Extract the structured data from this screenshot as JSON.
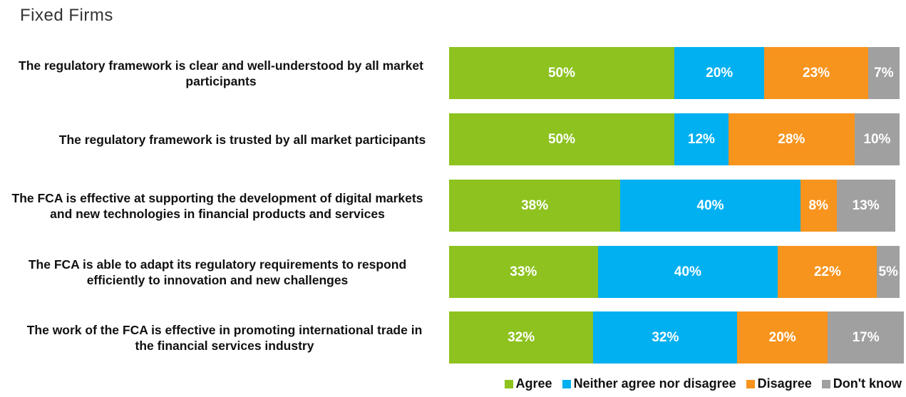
{
  "chart_data": {
    "type": "bar",
    "orientation": "horizontal",
    "stacked": true,
    "title": "Fixed Firms",
    "categories": [
      "The regulatory framework is clear and well-understood by all market participants",
      "The regulatory framework is trusted by all market participants",
      "The FCA is effective at supporting the development of digital markets and new technologies in financial products and services",
      "The FCA is able to adapt its regulatory requirements to respond efficiently to innovation and new challenges",
      "The work of the FCA is effective in promoting international trade in the financial services industry"
    ],
    "xlim": [
      0,
      100
    ],
    "legend": "bottom-right",
    "series": [
      {
        "name": "Agree",
        "color": "#8dc21f",
        "values": [
          50,
          50,
          38,
          33,
          32
        ],
        "value_labels": [
          "50%",
          "50%",
          "38%",
          "33%",
          "32%"
        ]
      },
      {
        "name": "Neither agree nor disagree",
        "color": "#00b0f0",
        "values": [
          20,
          12,
          40,
          40,
          32
        ],
        "value_labels": [
          "20%",
          "12%",
          "40%",
          "40%",
          "32%"
        ]
      },
      {
        "name": "Disagree",
        "color": "#f7941d",
        "values": [
          23,
          28,
          8,
          22,
          20
        ],
        "value_labels": [
          "23%",
          "28%",
          "8%",
          "22%",
          "20%"
        ]
      },
      {
        "name": "Don't know",
        "color": "#a0a0a0",
        "values": [
          7,
          10,
          13,
          5,
          17
        ],
        "value_labels": [
          "7%",
          "10%",
          "13%",
          "5%",
          "17%"
        ]
      }
    ]
  }
}
